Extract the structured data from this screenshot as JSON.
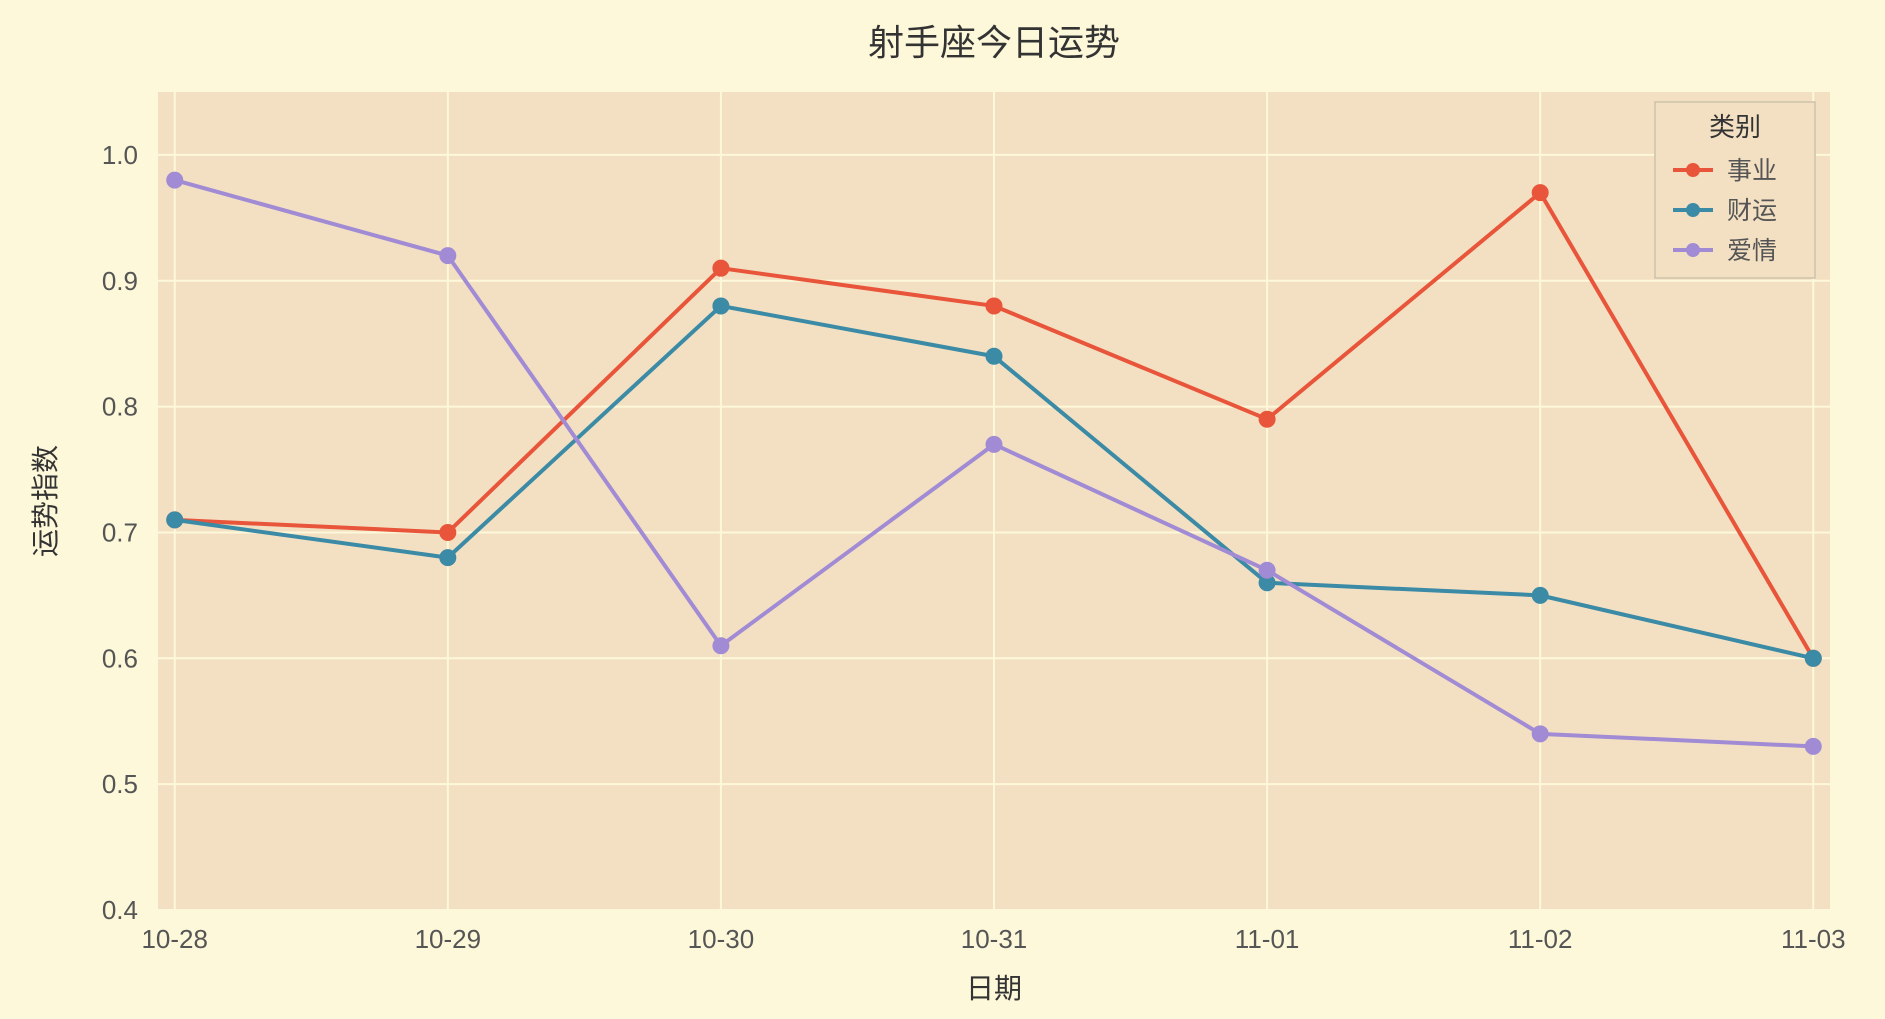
{
  "chart": {
    "type": "line",
    "title": "射手座今日运势",
    "title_fontsize": 36,
    "xlabel": "日期",
    "ylabel": "运势指数",
    "label_fontsize": 28,
    "tick_fontsize": 26,
    "background_color": "#fdf8d9",
    "plot_background_color": "#f3e0c2",
    "grid_color": "#fdf8d9",
    "categories": [
      "10-28",
      "10-29",
      "10-30",
      "10-31",
      "11-01",
      "11-02",
      "11-03"
    ],
    "ylim": [
      0.4,
      1.05
    ],
    "yticks": [
      0.4,
      0.5,
      0.6,
      0.7,
      0.8,
      0.9,
      1.0
    ],
    "ytick_labels": [
      "0.4",
      "0.5",
      "0.6",
      "0.7",
      "0.8",
      "0.9",
      "1.0"
    ],
    "line_width": 4,
    "marker_radius": 8,
    "legend": {
      "title": "类别",
      "position": "top-right",
      "bg_color": "#f3e0c2",
      "border_color": "#ccc2ab"
    },
    "series": [
      {
        "name": "事业",
        "color": "#e8553a",
        "values": [
          0.71,
          0.7,
          0.91,
          0.88,
          0.79,
          0.97,
          0.6
        ]
      },
      {
        "name": "财运",
        "color": "#3b8aa6",
        "values": [
          0.71,
          0.68,
          0.88,
          0.84,
          0.66,
          0.65,
          0.6
        ]
      },
      {
        "name": "爱情",
        "color": "#a18bd4",
        "values": [
          0.98,
          0.92,
          0.61,
          0.77,
          0.67,
          0.54,
          0.53
        ]
      }
    ]
  }
}
